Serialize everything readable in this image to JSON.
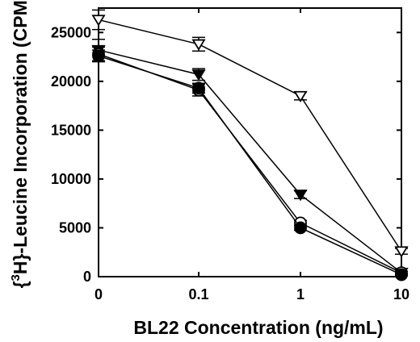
{
  "chart_data": {
    "type": "line",
    "title": "",
    "xlabel": "BL22 Concentration (ng/mL)",
    "ylabel": {
      "prefix": "{",
      "sup": "3",
      "rest": "H}-Leucine Incorporation (CPM)"
    },
    "x_scale": "categorical-log",
    "categories": [
      "0",
      "0.1",
      "1",
      "10"
    ],
    "ylim": [
      0,
      27500
    ],
    "yticks": [
      0,
      5000,
      10000,
      15000,
      20000,
      25000
    ],
    "ytick_labels": [
      "0",
      "5000",
      "10000",
      "15000",
      "20000",
      "25000"
    ],
    "grid": false,
    "legend": "none",
    "series": [
      {
        "marker": "triangle-down-open",
        "color": "#000000",
        "values": [
          26300,
          23800,
          18500,
          2600
        ],
        "errors": [
          1000,
          700,
          400,
          300
        ]
      },
      {
        "marker": "triangle-down-filled",
        "color": "#000000",
        "values": [
          23200,
          20700,
          8400,
          400
        ],
        "errors": [
          1100,
          600,
          400,
          150
        ]
      },
      {
        "marker": "circle-open",
        "color": "#000000",
        "values": [
          22800,
          19100,
          5500,
          400
        ],
        "errors": [
          700,
          600,
          250,
          150
        ]
      },
      {
        "marker": "circle-filled",
        "color": "#000000",
        "values": [
          22600,
          19300,
          5000,
          200
        ],
        "errors": [
          600,
          500,
          250,
          100
        ]
      }
    ]
  }
}
